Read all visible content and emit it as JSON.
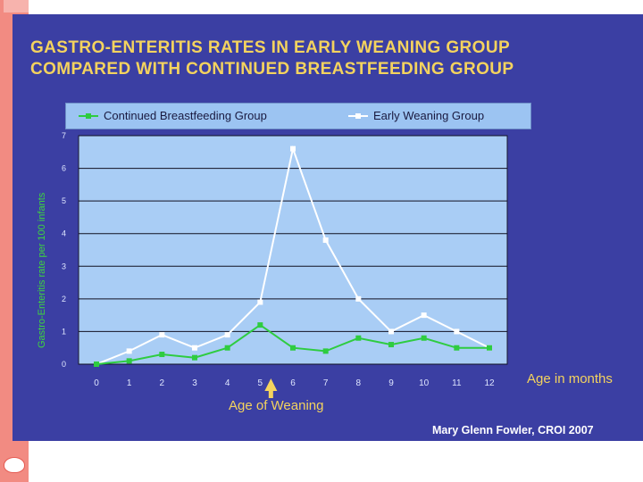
{
  "slide": {
    "credit": "Mary Glenn Fowler, CROI 2007"
  },
  "chart_data": {
    "type": "line",
    "title": [
      "GASTRO-ENTERITIS RATES IN EARLY WEANING GROUP",
      "COMPARED WITH CONTINUED BREASTFEEDING GROUP"
    ],
    "xlabel": "Age in months",
    "ylabel": "Gastro-Enteritis rate per 100 infants",
    "x": [
      0,
      1,
      2,
      3,
      4,
      5,
      6,
      7,
      8,
      9,
      10,
      11,
      12
    ],
    "x_ticks": [
      "0",
      "1",
      "2",
      "3",
      "4",
      "5",
      "6",
      "7",
      "8",
      "9",
      "10",
      "11",
      "12"
    ],
    "y_ticks": [
      "0",
      "1",
      "2",
      "3",
      "4",
      "5",
      "6",
      "7"
    ],
    "ylim": [
      0,
      7
    ],
    "grid": "horizontal",
    "legend_position": "top",
    "series": [
      {
        "name": "Continued Breastfeeding Group",
        "color": "#2ecc40",
        "values": [
          0,
          0.1,
          0.3,
          0.2,
          0.5,
          1.2,
          0.5,
          0.4,
          0.8,
          0.6,
          0.8,
          0.5,
          0.5
        ]
      },
      {
        "name": "Early Weaning Group",
        "color": "#ffffff",
        "values": [
          0,
          0.4,
          0.9,
          0.5,
          0.9,
          1.9,
          6.6,
          3.8,
          2.0,
          1.0,
          1.5,
          1.0,
          0.5
        ]
      }
    ],
    "annotation": {
      "text": "Age of Weaning",
      "x": 5,
      "color": "#f4d35e"
    }
  }
}
